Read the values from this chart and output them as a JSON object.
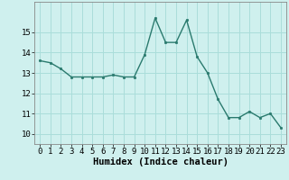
{
  "x": [
    0,
    1,
    2,
    3,
    4,
    5,
    6,
    7,
    8,
    9,
    10,
    11,
    12,
    13,
    14,
    15,
    16,
    17,
    18,
    19,
    20,
    21,
    22,
    23
  ],
  "y": [
    13.6,
    13.5,
    13.2,
    12.8,
    12.8,
    12.8,
    12.8,
    12.9,
    12.8,
    12.8,
    13.9,
    15.7,
    14.5,
    14.5,
    15.6,
    13.8,
    13.0,
    11.7,
    10.8,
    10.8,
    11.1,
    10.8,
    11.0,
    10.3
  ],
  "bg_color": "#cff0ee",
  "grid_color": "#aaddda",
  "line_color": "#2a7a6e",
  "marker_color": "#2a7a6e",
  "xlabel": "Humidex (Indice chaleur)",
  "ylim": [
    9.5,
    16.5
  ],
  "xlim": [
    -0.5,
    23.5
  ],
  "yticks": [
    10,
    11,
    12,
    13,
    14,
    15
  ],
  "xticks": [
    0,
    1,
    2,
    3,
    4,
    5,
    6,
    7,
    8,
    9,
    10,
    11,
    12,
    13,
    14,
    15,
    16,
    17,
    18,
    19,
    20,
    21,
    22,
    23
  ],
  "xlabel_fontsize": 7.5,
  "tick_fontsize": 6.5
}
